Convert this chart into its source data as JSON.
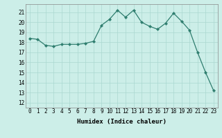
{
  "x": [
    0,
    1,
    2,
    3,
    4,
    5,
    6,
    7,
    8,
    9,
    10,
    11,
    12,
    13,
    14,
    15,
    16,
    17,
    18,
    19,
    20,
    21,
    22,
    23
  ],
  "y": [
    18.4,
    18.3,
    17.7,
    17.6,
    17.8,
    17.8,
    17.8,
    17.9,
    18.1,
    19.7,
    20.3,
    21.2,
    20.5,
    21.2,
    20.0,
    19.6,
    19.3,
    19.9,
    20.9,
    20.1,
    19.2,
    17.0,
    15.0,
    13.2
  ],
  "xlabel": "Humidex (Indice chaleur)",
  "ylim": [
    11.5,
    21.8
  ],
  "yticks": [
    12,
    13,
    14,
    15,
    16,
    17,
    18,
    19,
    20,
    21
  ],
  "xticks": [
    0,
    1,
    2,
    3,
    4,
    5,
    6,
    7,
    8,
    9,
    10,
    11,
    12,
    13,
    14,
    15,
    16,
    17,
    18,
    19,
    20,
    21,
    22,
    23
  ],
  "line_color": "#2e7d6e",
  "marker_color": "#2e7d6e",
  "bg_color": "#cceee8",
  "grid_color": "#aad8d0",
  "label_fontsize": 6.5,
  "tick_fontsize": 5.5
}
